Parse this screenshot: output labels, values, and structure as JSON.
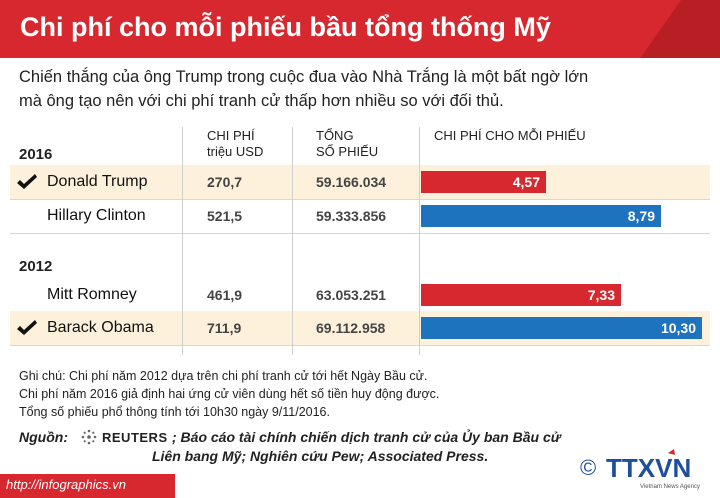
{
  "header": {
    "title": "Chi phí cho mỗi phiếu bầu tổng thống Mỹ"
  },
  "intro": {
    "line1": "Chiến thắng của ông Trump trong cuộc đua vào Nhà Trắng là một bất ngờ lớn",
    "line2": "mà ông tạo nên với chi phí tranh cử thấp hơn nhiều so với đối thủ."
  },
  "columns": {
    "cost_line1": "CHI PHÍ",
    "cost_line2": "triệu USD",
    "votes_line1": "TỔNG",
    "votes_line2": "SỐ PHIẾU",
    "per_vote": "CHI PHÍ CHO MỖI PHIẾU"
  },
  "chart_data": {
    "type": "table",
    "title": "Chi phí cho mỗi phiếu bầu tổng thống Mỹ",
    "groups": [
      {
        "year": "2016",
        "rows": [
          {
            "candidate": "Donald Trump",
            "winner": true,
            "cost": "270,7",
            "votes": "59.166.034",
            "per_vote": 4.57,
            "per_vote_label": "4,57",
            "color": "#d7282f"
          },
          {
            "candidate": "Hillary Clinton",
            "winner": false,
            "cost": "521,5",
            "votes": "59.333.856",
            "per_vote": 8.79,
            "per_vote_label": "8,79",
            "color": "#1e73be"
          }
        ]
      },
      {
        "year": "2012",
        "rows": [
          {
            "candidate": "Mitt Romney",
            "winner": false,
            "cost": "461,9",
            "votes": "63.053.251",
            "per_vote": 7.33,
            "per_vote_label": "7,33",
            "color": "#d7282f"
          },
          {
            "candidate": "Barack Obama",
            "winner": true,
            "cost": "711,9",
            "votes": "69.112.958",
            "per_vote": 10.3,
            "per_vote_label": "10,30",
            "color": "#1e73be"
          }
        ]
      }
    ],
    "max_per_vote": 10.3
  },
  "notes": {
    "line1": "Ghi chú: Chi phí năm 2012 dựa trên chi phí tranh cử tới hết Ngày Bầu cử.",
    "line2": "Chi phí năm 2016 giả định hai ứng cử viên dùng hết số tiền huy động được.",
    "line3": "Tổng số phiếu phổ thông tính tới 10h30 ngày 9/11/2016."
  },
  "source": {
    "label": "Nguồn:",
    "reuters": "REUTERS",
    "line1": "; Báo cáo tài chính chiến dịch tranh cử của Ủy ban Bầu cử",
    "line2": "Liên bang Mỹ; Nghiên cứu Pew; Associated Press."
  },
  "footer": {
    "url": "http://infographics.vn"
  },
  "logo": {
    "name": "TTXVN",
    "subtitle": "Vietnam News Agency",
    "symbol": "©"
  }
}
